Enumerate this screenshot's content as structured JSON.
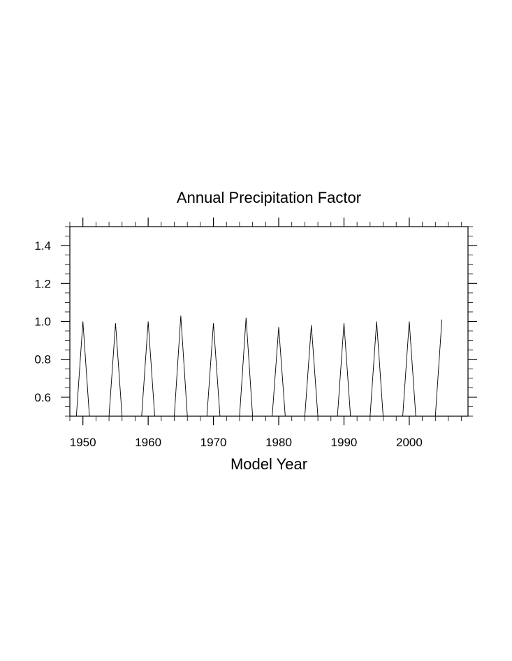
{
  "chart_data": {
    "type": "line",
    "title": "Annual Precipitation Factor",
    "xlabel": "Model Year",
    "ylabel": "",
    "xlim": [
      1948,
      2009
    ],
    "ylim": [
      0.5,
      1.5
    ],
    "x_major_ticks": [
      1950,
      1960,
      1970,
      1980,
      1990,
      2000
    ],
    "x_tick_labels": [
      "1950",
      "1960",
      "1970",
      "1980",
      "1990",
      "2000"
    ],
    "x_minor_step": 2,
    "y_major_ticks": [
      0.6,
      0.8,
      1.0,
      1.2,
      1.4
    ],
    "y_tick_labels": [
      "0.6",
      "0.8",
      "1.0",
      "1.2",
      "1.4"
    ],
    "y_minor_step": 0.05,
    "grid": false,
    "legend": "none",
    "line_color": "#000000",
    "series": [
      {
        "x": [
          1949,
          1950,
          1951,
          1954,
          1955,
          1956,
          1959,
          1960,
          1961,
          1964,
          1965,
          1966,
          1969,
          1970,
          1971,
          1974,
          1975,
          1976,
          1979,
          1980,
          1981,
          1984,
          1985,
          1986,
          1989,
          1990,
          1991,
          1994,
          1995,
          1996,
          1999,
          2000,
          2001,
          2004,
          2005
        ],
        "y": [
          0.5,
          1.0,
          0.5,
          0.5,
          0.99,
          0.5,
          0.5,
          1.0,
          0.5,
          0.5,
          1.03,
          0.5,
          0.5,
          0.99,
          0.5,
          0.5,
          1.02,
          0.5,
          0.5,
          0.97,
          0.5,
          0.5,
          0.98,
          0.5,
          0.5,
          0.99,
          0.5,
          0.5,
          1.0,
          0.5,
          0.5,
          1.0,
          0.5,
          0.5,
          1.01
        ]
      }
    ]
  }
}
